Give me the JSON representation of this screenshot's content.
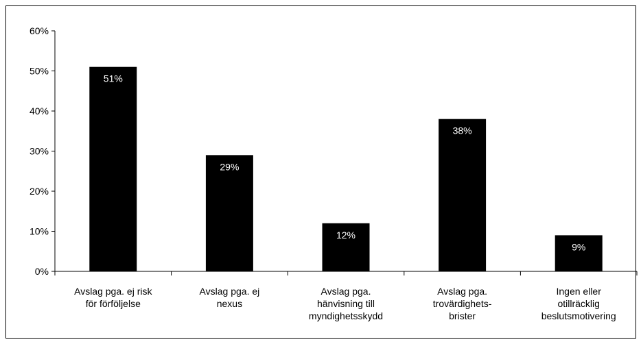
{
  "chart_data": {
    "type": "bar",
    "title": "",
    "xlabel": "",
    "ylabel": "",
    "ylim": [
      0,
      60
    ],
    "yticks": [
      "0%",
      "10%",
      "20%",
      "30%",
      "40%",
      "50%",
      "60%"
    ],
    "grid": false,
    "legend": "none",
    "categories": [
      [
        "Avslag pga. ej risk",
        "för förföljelse"
      ],
      [
        "Avslag pga. ej",
        "nexus"
      ],
      [
        "Avslag pga.",
        "hänvisning till",
        "myndighetsskydd"
      ],
      [
        "Avslag pga.",
        "trovärdighets-",
        "brister"
      ],
      [
        "Ingen eller",
        "otillräcklig",
        "beslutsmotivering"
      ]
    ],
    "values": [
      51,
      29,
      12,
      38,
      9
    ],
    "data_labels": [
      "51%",
      "29%",
      "12%",
      "38%",
      "9%"
    ],
    "colors": {
      "bar": "#000000",
      "label_text": "#ffffff",
      "axis": "#000000"
    }
  }
}
